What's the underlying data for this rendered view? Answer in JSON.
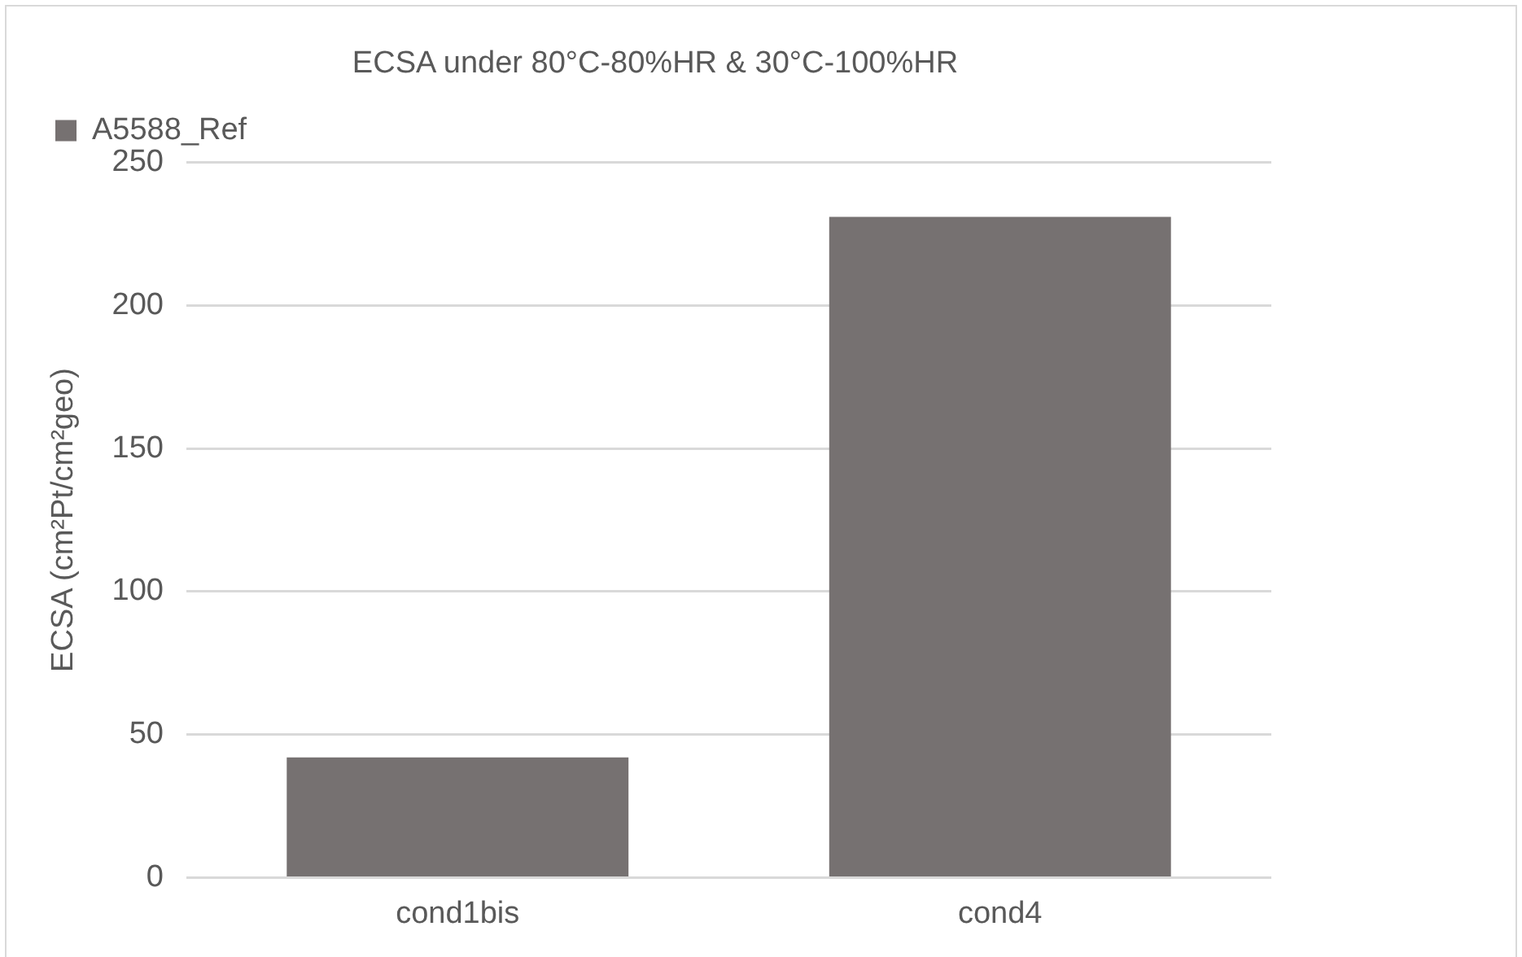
{
  "chart_data": {
    "type": "bar",
    "title": "ECSA under 80°C-80%HR & 30°C-100%HR",
    "ylabel": "ECSA (cm²Pt/cm²geo)",
    "categories": [
      "cond1bis",
      "cond4"
    ],
    "series": [
      {
        "name": "A5588_Ref",
        "color": "#767171",
        "values": [
          42,
          231
        ]
      }
    ],
    "ylim": [
      0,
      250
    ],
    "yticks": [
      0,
      50,
      100,
      150,
      200,
      250
    ],
    "grid": "y",
    "legend": "top left"
  }
}
